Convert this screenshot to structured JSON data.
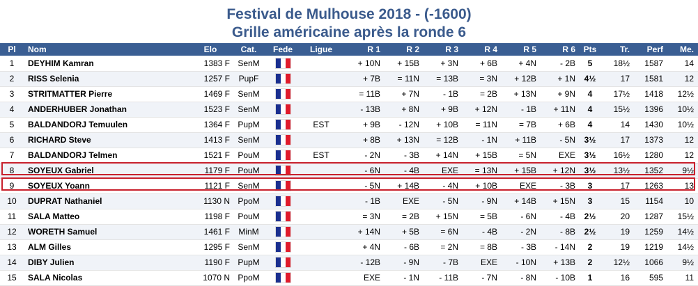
{
  "title_line1": "Festival de Mulhouse 2018 - (-1600)",
  "title_line2": "Grille américaine après la ronde 6",
  "headers": {
    "pl": "Pl",
    "nom": "Nom",
    "elo": "Elo",
    "cat": "Cat.",
    "fede": "Fede",
    "ligue": "Ligue",
    "r1": "R 1",
    "r2": "R 2",
    "r3": "R 3",
    "r4": "R 4",
    "r5": "R 5",
    "r6": "R 6",
    "pts": "Pts",
    "tr": "Tr.",
    "perf": "Perf",
    "me": "Me."
  },
  "flag_icon": "france-flag-icon",
  "highlighted_rows": [
    8,
    9
  ],
  "highlight_color": "#c8202c",
  "rows": [
    {
      "pl": "1",
      "nom": "DEYHIM Kamran",
      "elo": "1383 F",
      "cat": "SenM",
      "ligue": "",
      "r1": "+ 10N",
      "r2": "+ 15B",
      "r3": "+ 3N",
      "r4": "+ 6B",
      "r5": "+ 4N",
      "r6": "- 2B",
      "pts": "5",
      "tr": "18½",
      "perf": "1587",
      "me": "14"
    },
    {
      "pl": "2",
      "nom": "RISS Selenia",
      "elo": "1257 F",
      "cat": "PupF",
      "ligue": "",
      "r1": "+ 7B",
      "r2": "= 11N",
      "r3": "= 13B",
      "r4": "= 3N",
      "r5": "+ 12B",
      "r6": "+ 1N",
      "pts": "4½",
      "tr": "17",
      "perf": "1581",
      "me": "12"
    },
    {
      "pl": "3",
      "nom": "STRITMATTER Pierre",
      "elo": "1469 F",
      "cat": "SenM",
      "ligue": "",
      "r1": "= 11B",
      "r2": "+ 7N",
      "r3": "- 1B",
      "r4": "= 2B",
      "r5": "+ 13N",
      "r6": "+ 9N",
      "pts": "4",
      "tr": "17½",
      "perf": "1418",
      "me": "12½"
    },
    {
      "pl": "4",
      "nom": "ANDERHUBER Jonathan",
      "elo": "1523 F",
      "cat": "SenM",
      "ligue": "",
      "r1": "- 13B",
      "r2": "+ 8N",
      "r3": "+ 9B",
      "r4": "+ 12N",
      "r5": "- 1B",
      "r6": "+ 11N",
      "pts": "4",
      "tr": "15½",
      "perf": "1396",
      "me": "10½"
    },
    {
      "pl": "5",
      "nom": "BALDANDORJ Temuulen",
      "elo": "1364 F",
      "cat": "PupM",
      "ligue": "EST",
      "r1": "+ 9B",
      "r2": "- 12N",
      "r3": "+ 10B",
      "r4": "= 11N",
      "r5": "= 7B",
      "r6": "+ 6B",
      "pts": "4",
      "tr": "14",
      "perf": "1430",
      "me": "10½"
    },
    {
      "pl": "6",
      "nom": "RICHARD Steve",
      "elo": "1413 F",
      "cat": "SenM",
      "ligue": "",
      "r1": "+ 8B",
      "r2": "+ 13N",
      "r3": "= 12B",
      "r4": "- 1N",
      "r5": "+ 11B",
      "r6": "- 5N",
      "pts": "3½",
      "tr": "17",
      "perf": "1373",
      "me": "12"
    },
    {
      "pl": "7",
      "nom": "BALDANDORJ Telmen",
      "elo": "1521 F",
      "cat": "PouM",
      "ligue": "EST",
      "r1": "- 2N",
      "r2": "- 3B",
      "r3": "+ 14N",
      "r4": "+ 15B",
      "r5": "= 5N",
      "r6": "EXE",
      "pts": "3½",
      "tr": "16½",
      "perf": "1280",
      "me": "12"
    },
    {
      "pl": "8",
      "nom": "SOYEUX Gabriel",
      "elo": "1179 F",
      "cat": "PouM",
      "ligue": "",
      "r1": "- 6N",
      "r2": "- 4B",
      "r3": "EXE",
      "r4": "= 13N",
      "r5": "+ 15B",
      "r6": "+ 12N",
      "pts": "3½",
      "tr": "13½",
      "perf": "1352",
      "me": "9½"
    },
    {
      "pl": "9",
      "nom": "SOYEUX Yoann",
      "elo": "1121 F",
      "cat": "SenM",
      "ligue": "",
      "r1": "- 5N",
      "r2": "+ 14B",
      "r3": "- 4N",
      "r4": "+ 10B",
      "r5": "EXE",
      "r6": "- 3B",
      "pts": "3",
      "tr": "17",
      "perf": "1263",
      "me": "13"
    },
    {
      "pl": "10",
      "nom": "DUPRAT Nathaniel",
      "elo": "1130 N",
      "cat": "PpoM",
      "ligue": "",
      "r1": "- 1B",
      "r2": "EXE",
      "r3": "- 5N",
      "r4": "- 9N",
      "r5": "+ 14B",
      "r6": "+ 15N",
      "pts": "3",
      "tr": "15",
      "perf": "1154",
      "me": "10"
    },
    {
      "pl": "11",
      "nom": "SALA Matteo",
      "elo": "1198 F",
      "cat": "PouM",
      "ligue": "",
      "r1": "= 3N",
      "r2": "= 2B",
      "r3": "+ 15N",
      "r4": "= 5B",
      "r5": "- 6N",
      "r6": "- 4B",
      "pts": "2½",
      "tr": "20",
      "perf": "1287",
      "me": "15½"
    },
    {
      "pl": "12",
      "nom": "WORETH Samuel",
      "elo": "1461 F",
      "cat": "MinM",
      "ligue": "",
      "r1": "+ 14N",
      "r2": "+ 5B",
      "r3": "= 6N",
      "r4": "- 4B",
      "r5": "- 2N",
      "r6": "- 8B",
      "pts": "2½",
      "tr": "19",
      "perf": "1259",
      "me": "14½"
    },
    {
      "pl": "13",
      "nom": "ALM Gilles",
      "elo": "1295 F",
      "cat": "SenM",
      "ligue": "",
      "r1": "+ 4N",
      "r2": "- 6B",
      "r3": "= 2N",
      "r4": "= 8B",
      "r5": "- 3B",
      "r6": "- 14N",
      "pts": "2",
      "tr": "19",
      "perf": "1219",
      "me": "14½"
    },
    {
      "pl": "14",
      "nom": "DIBY Julien",
      "elo": "1190 F",
      "cat": "PupM",
      "ligue": "",
      "r1": "- 12B",
      "r2": "- 9N",
      "r3": "- 7B",
      "r4": "EXE",
      "r5": "- 10N",
      "r6": "+ 13B",
      "pts": "2",
      "tr": "12½",
      "perf": "1066",
      "me": "9½"
    },
    {
      "pl": "15",
      "nom": "SALA Nicolas",
      "elo": "1070 N",
      "cat": "PpoM",
      "ligue": "",
      "r1": "EXE",
      "r2": "- 1N",
      "r3": "- 11B",
      "r4": "- 7N",
      "r5": "- 8N",
      "r6": "- 10B",
      "pts": "1",
      "tr": "16",
      "perf": "595",
      "me": "11"
    }
  ]
}
